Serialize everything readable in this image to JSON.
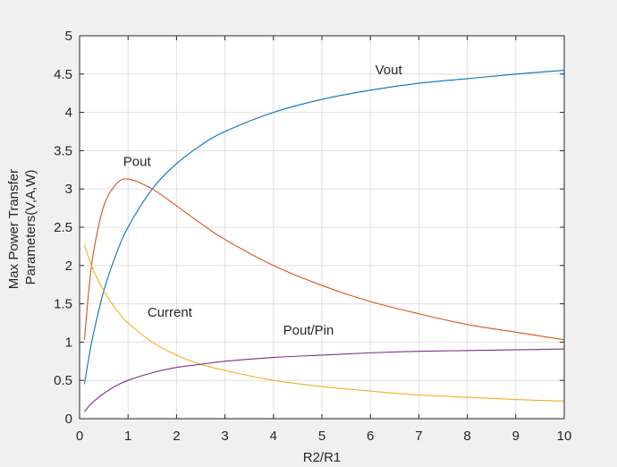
{
  "chart_data": {
    "type": "line",
    "title": "",
    "xlabel": "R2/R1",
    "ylabel_lines": [
      "Max Power Transfer",
      "Parameters(V,A,W)"
    ],
    "xlim": [
      0,
      10
    ],
    "ylim": [
      0,
      5
    ],
    "xticks": [
      "0",
      "1",
      "2",
      "3",
      "4",
      "5",
      "6",
      "7",
      "8",
      "9",
      "10"
    ],
    "yticks": [
      "0",
      "0.5",
      "1",
      "1.5",
      "2",
      "2.5",
      "3",
      "3.5",
      "4",
      "4.5",
      "5"
    ],
    "grid": true,
    "legend": "none (series labelled inline)",
    "series": [
      {
        "name": "Vout",
        "color": "#0072BD",
        "x": [
          0.1,
          0.2,
          0.3,
          0.5,
          0.75,
          1,
          1.5,
          2,
          2.5,
          3,
          4,
          5,
          6,
          7,
          8,
          9,
          10
        ],
        "y": [
          0.45,
          0.83,
          1.15,
          1.67,
          2.14,
          2.5,
          3.0,
          3.33,
          3.57,
          3.75,
          4.0,
          4.17,
          4.29,
          4.38,
          4.44,
          4.5,
          4.55
        ]
      },
      {
        "name": "Pout",
        "color": "#D95319",
        "x": [
          0.1,
          0.2,
          0.3,
          0.5,
          0.75,
          1,
          1.5,
          2,
          2.5,
          3,
          4,
          5,
          6,
          7,
          8,
          9,
          10
        ],
        "y": [
          1.03,
          1.74,
          2.22,
          2.78,
          3.06,
          3.13,
          3.0,
          2.78,
          2.55,
          2.34,
          2.0,
          1.74,
          1.53,
          1.37,
          1.23,
          1.13,
          1.03
        ]
      },
      {
        "name": "Current",
        "color": "#EDB120",
        "x": [
          0.1,
          0.2,
          0.3,
          0.5,
          0.75,
          1,
          1.5,
          2,
          2.5,
          3,
          4,
          5,
          6,
          7,
          8,
          9,
          10
        ],
        "y": [
          2.27,
          2.08,
          1.92,
          1.67,
          1.43,
          1.25,
          1.0,
          0.83,
          0.71,
          0.63,
          0.5,
          0.42,
          0.36,
          0.31,
          0.28,
          0.25,
          0.23
        ]
      },
      {
        "name": "Pout/Pin",
        "color": "#7E2F8E",
        "x": [
          0.1,
          0.2,
          0.3,
          0.5,
          0.75,
          1,
          1.5,
          2,
          2.5,
          3,
          4,
          5,
          6,
          7,
          8,
          9,
          10
        ],
        "y": [
          0.09,
          0.17,
          0.23,
          0.33,
          0.43,
          0.5,
          0.6,
          0.67,
          0.71,
          0.75,
          0.8,
          0.83,
          0.86,
          0.88,
          0.89,
          0.9,
          0.91
        ]
      }
    ],
    "annotations": [
      {
        "text": "Vout",
        "x": 6.1,
        "y": 4.5
      },
      {
        "text": "Pout",
        "x": 0.9,
        "y": 3.3
      },
      {
        "text": "Current",
        "x": 1.4,
        "y": 1.33
      },
      {
        "text": "Pout/Pin",
        "x": 4.2,
        "y": 1.1
      }
    ]
  }
}
